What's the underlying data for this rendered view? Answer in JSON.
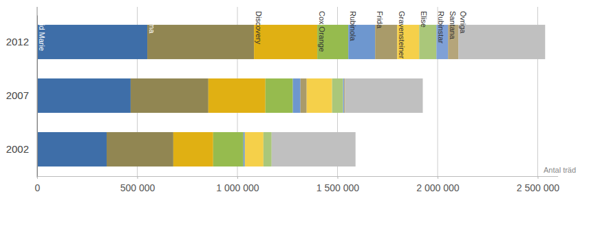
{
  "chart_data": {
    "type": "bar",
    "orientation": "horizontal",
    "stacked": true,
    "grid": true,
    "xlabel": "Antal träd",
    "categories": [
      "2012",
      "2007",
      "2002"
    ],
    "series": [
      {
        "name": "Ingrid Marie",
        "color": "#3e6ea8",
        "values": [
          550000,
          467000,
          347000
        ]
      },
      {
        "name": "Aroma",
        "color": "#918652",
        "values": [
          533000,
          388000,
          333000
        ]
      },
      {
        "name": "Discovery",
        "color": "#e0b013",
        "values": [
          316000,
          285000,
          199000
        ]
      },
      {
        "name": "Cox Orange",
        "color": "#96bb4e",
        "values": [
          155000,
          137000,
          151000
        ]
      },
      {
        "name": "Rubinola",
        "color": "#6e97cf",
        "values": [
          134000,
          38000,
          7000
        ]
      },
      {
        "name": "Frida",
        "color": "#a99b6a",
        "values": [
          110000,
          31000,
          0
        ]
      },
      {
        "name": "Gravensteiner",
        "color": "#f5d04a",
        "values": [
          110000,
          127000,
          93000
        ]
      },
      {
        "name": "Elise",
        "color": "#aac77a",
        "values": [
          86000,
          55000,
          41000
        ]
      },
      {
        "name": "Rubinstar",
        "color": "#7fa0d6",
        "values": [
          58000,
          5000,
          0
        ]
      },
      {
        "name": "Santana",
        "color": "#b5a57a",
        "values": [
          52000,
          5000,
          0
        ]
      },
      {
        "name": "Övriga",
        "color": "#c0c0c0",
        "values": [
          433000,
          388000,
          419000
        ]
      }
    ],
    "xlim": [
      0,
      2600000
    ],
    "xticks": [
      0,
      {
        "value": 500000,
        "label": "500 000"
      },
      {
        "value": 1000000,
        "label": "1 000 000"
      },
      {
        "value": 1500000,
        "label": "1 500 000"
      },
      {
        "value": 2000000,
        "label": "2 000 000"
      },
      {
        "value": 2500000,
        "label": "2 500 000"
      }
    ]
  }
}
